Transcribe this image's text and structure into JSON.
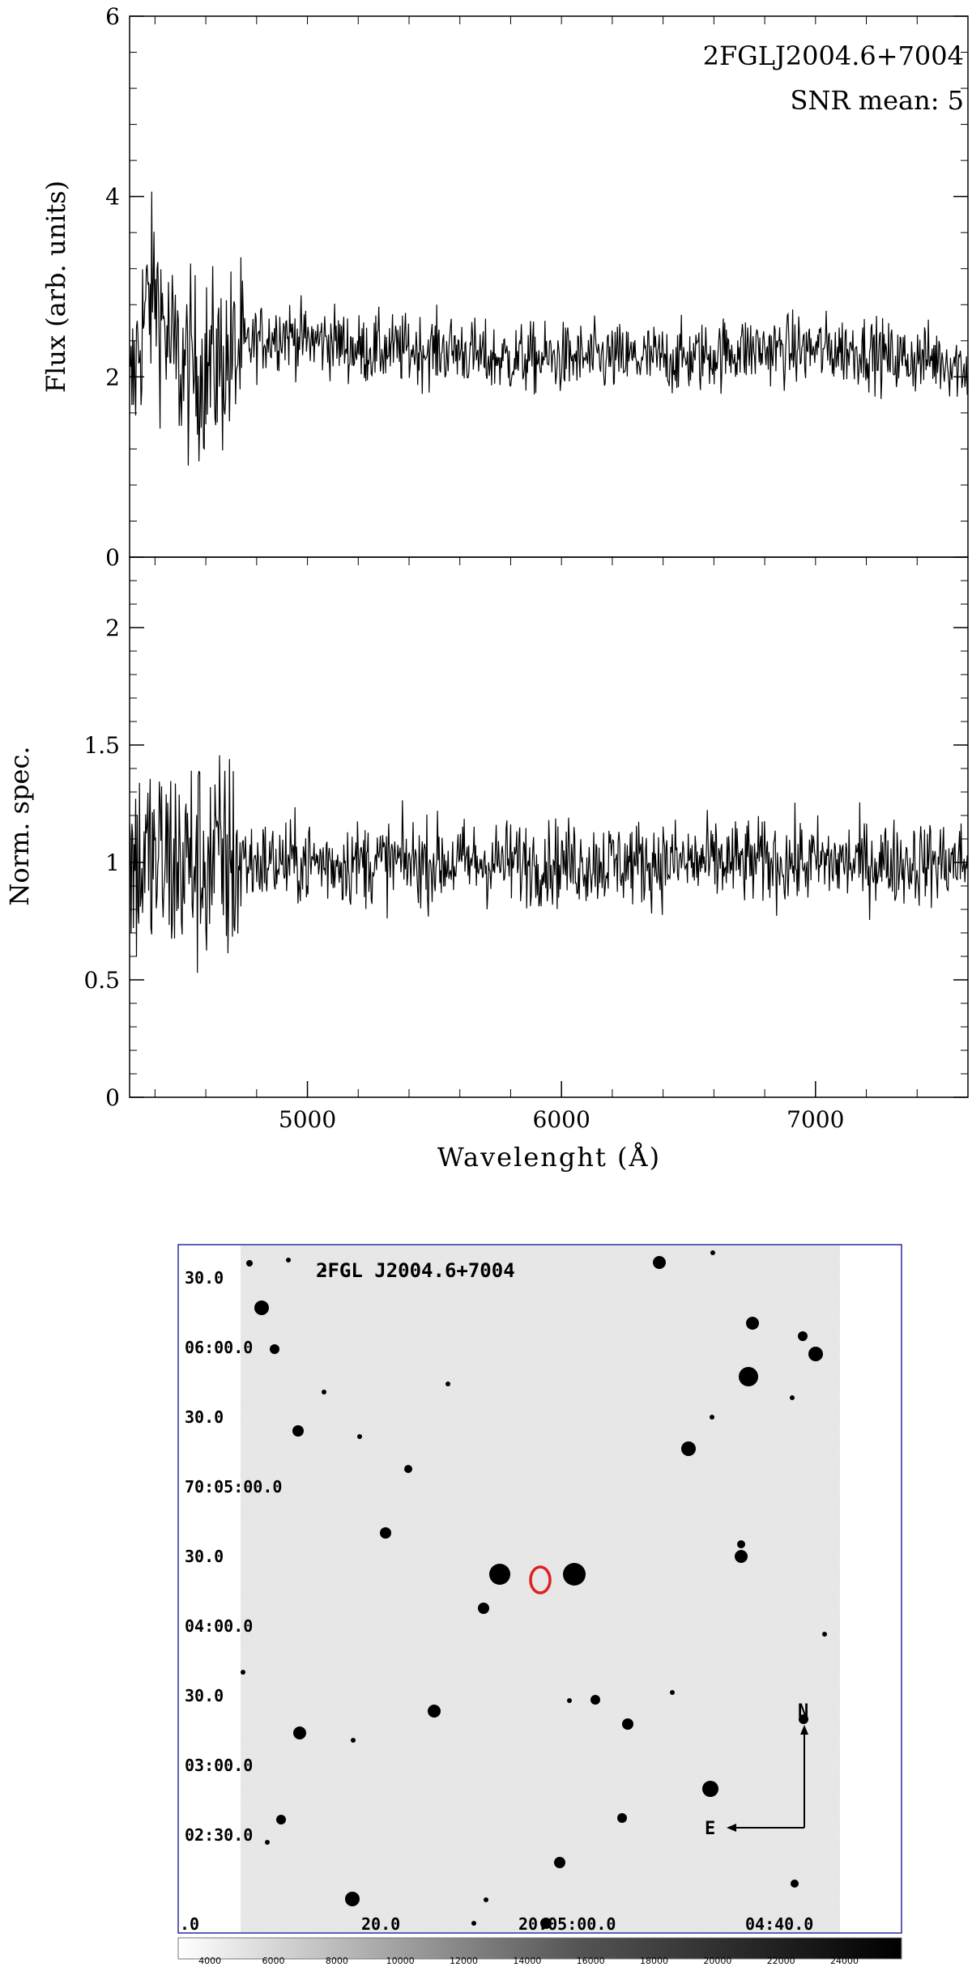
{
  "chart_data": [
    {
      "type": "line",
      "panel": "top",
      "title": "2FGLJ2004.6+7004",
      "annotation": "SNR mean: 5",
      "xlabel": "",
      "ylabel": "Flux (arb. units)",
      "xlim": [
        4300,
        7600
      ],
      "ylim": [
        0,
        6
      ],
      "yticks": [
        0,
        2,
        4,
        6
      ],
      "ytick_labels": [
        "0",
        "2",
        "4",
        "6"
      ],
      "series": [
        {
          "x": [
            4300,
            4350,
            4400,
            4450,
            4500,
            4600,
            4700,
            4800,
            4900,
            5000,
            5100,
            5200,
            5300,
            5400,
            5500,
            5600,
            5700,
            5800,
            5900,
            6000,
            6100,
            6200,
            6300,
            6400,
            6500,
            6600,
            6700,
            6800,
            6900,
            7000,
            7100,
            7200,
            7300,
            7350,
            7400,
            7500,
            7600
          ],
          "y": [
            1.7,
            2.6,
            3.0,
            2.4,
            2.1,
            2.1,
            2.2,
            2.4,
            2.5,
            2.4,
            2.4,
            2.3,
            2.3,
            2.3,
            2.3,
            2.3,
            2.2,
            2.2,
            2.2,
            2.2,
            2.2,
            2.2,
            2.2,
            2.2,
            2.2,
            2.25,
            2.3,
            2.3,
            2.3,
            2.3,
            2.3,
            2.3,
            2.2,
            2.2,
            2.2,
            2.2,
            2.1
          ]
        }
      ]
    },
    {
      "type": "line",
      "panel": "bottom",
      "xlabel": "Wavelenght (Å)",
      "ylabel": "Norm. spec.",
      "xlim": [
        4300,
        7600
      ],
      "ylim": [
        0,
        2.3
      ],
      "xticks": [
        5000,
        6000,
        7000
      ],
      "xtick_labels": [
        "5000",
        "6000",
        "7000"
      ],
      "yticks": [
        0,
        0.5,
        1,
        1.5,
        2
      ],
      "ytick_labels": [
        "0",
        "0.5",
        "1",
        "1.5",
        "2"
      ],
      "series": [
        {
          "x": [
            4300,
            7600
          ],
          "y": [
            1.0,
            1.0
          ]
        }
      ]
    },
    {
      "type": "image",
      "title": "2FGL J2004.6+7004",
      "dec_labels": [
        "30.0",
        "06:00.0",
        "30.0",
        "70:05:00.0",
        "30.0",
        "04:00.0",
        "30.0",
        "03:00.0",
        "02:30.0"
      ],
      "ra_labels": [
        ".0",
        "20.0",
        "20:05:00.0",
        "04:40.0"
      ],
      "compass": {
        "north": "N",
        "east": "E"
      },
      "colorbar_ticks": [
        4000,
        6000,
        8000,
        10000,
        12000,
        14000,
        16000,
        18000,
        20000,
        22000,
        24000
      ],
      "marker_color": "#e02020",
      "frame_color": "#2a2aa0"
    }
  ]
}
